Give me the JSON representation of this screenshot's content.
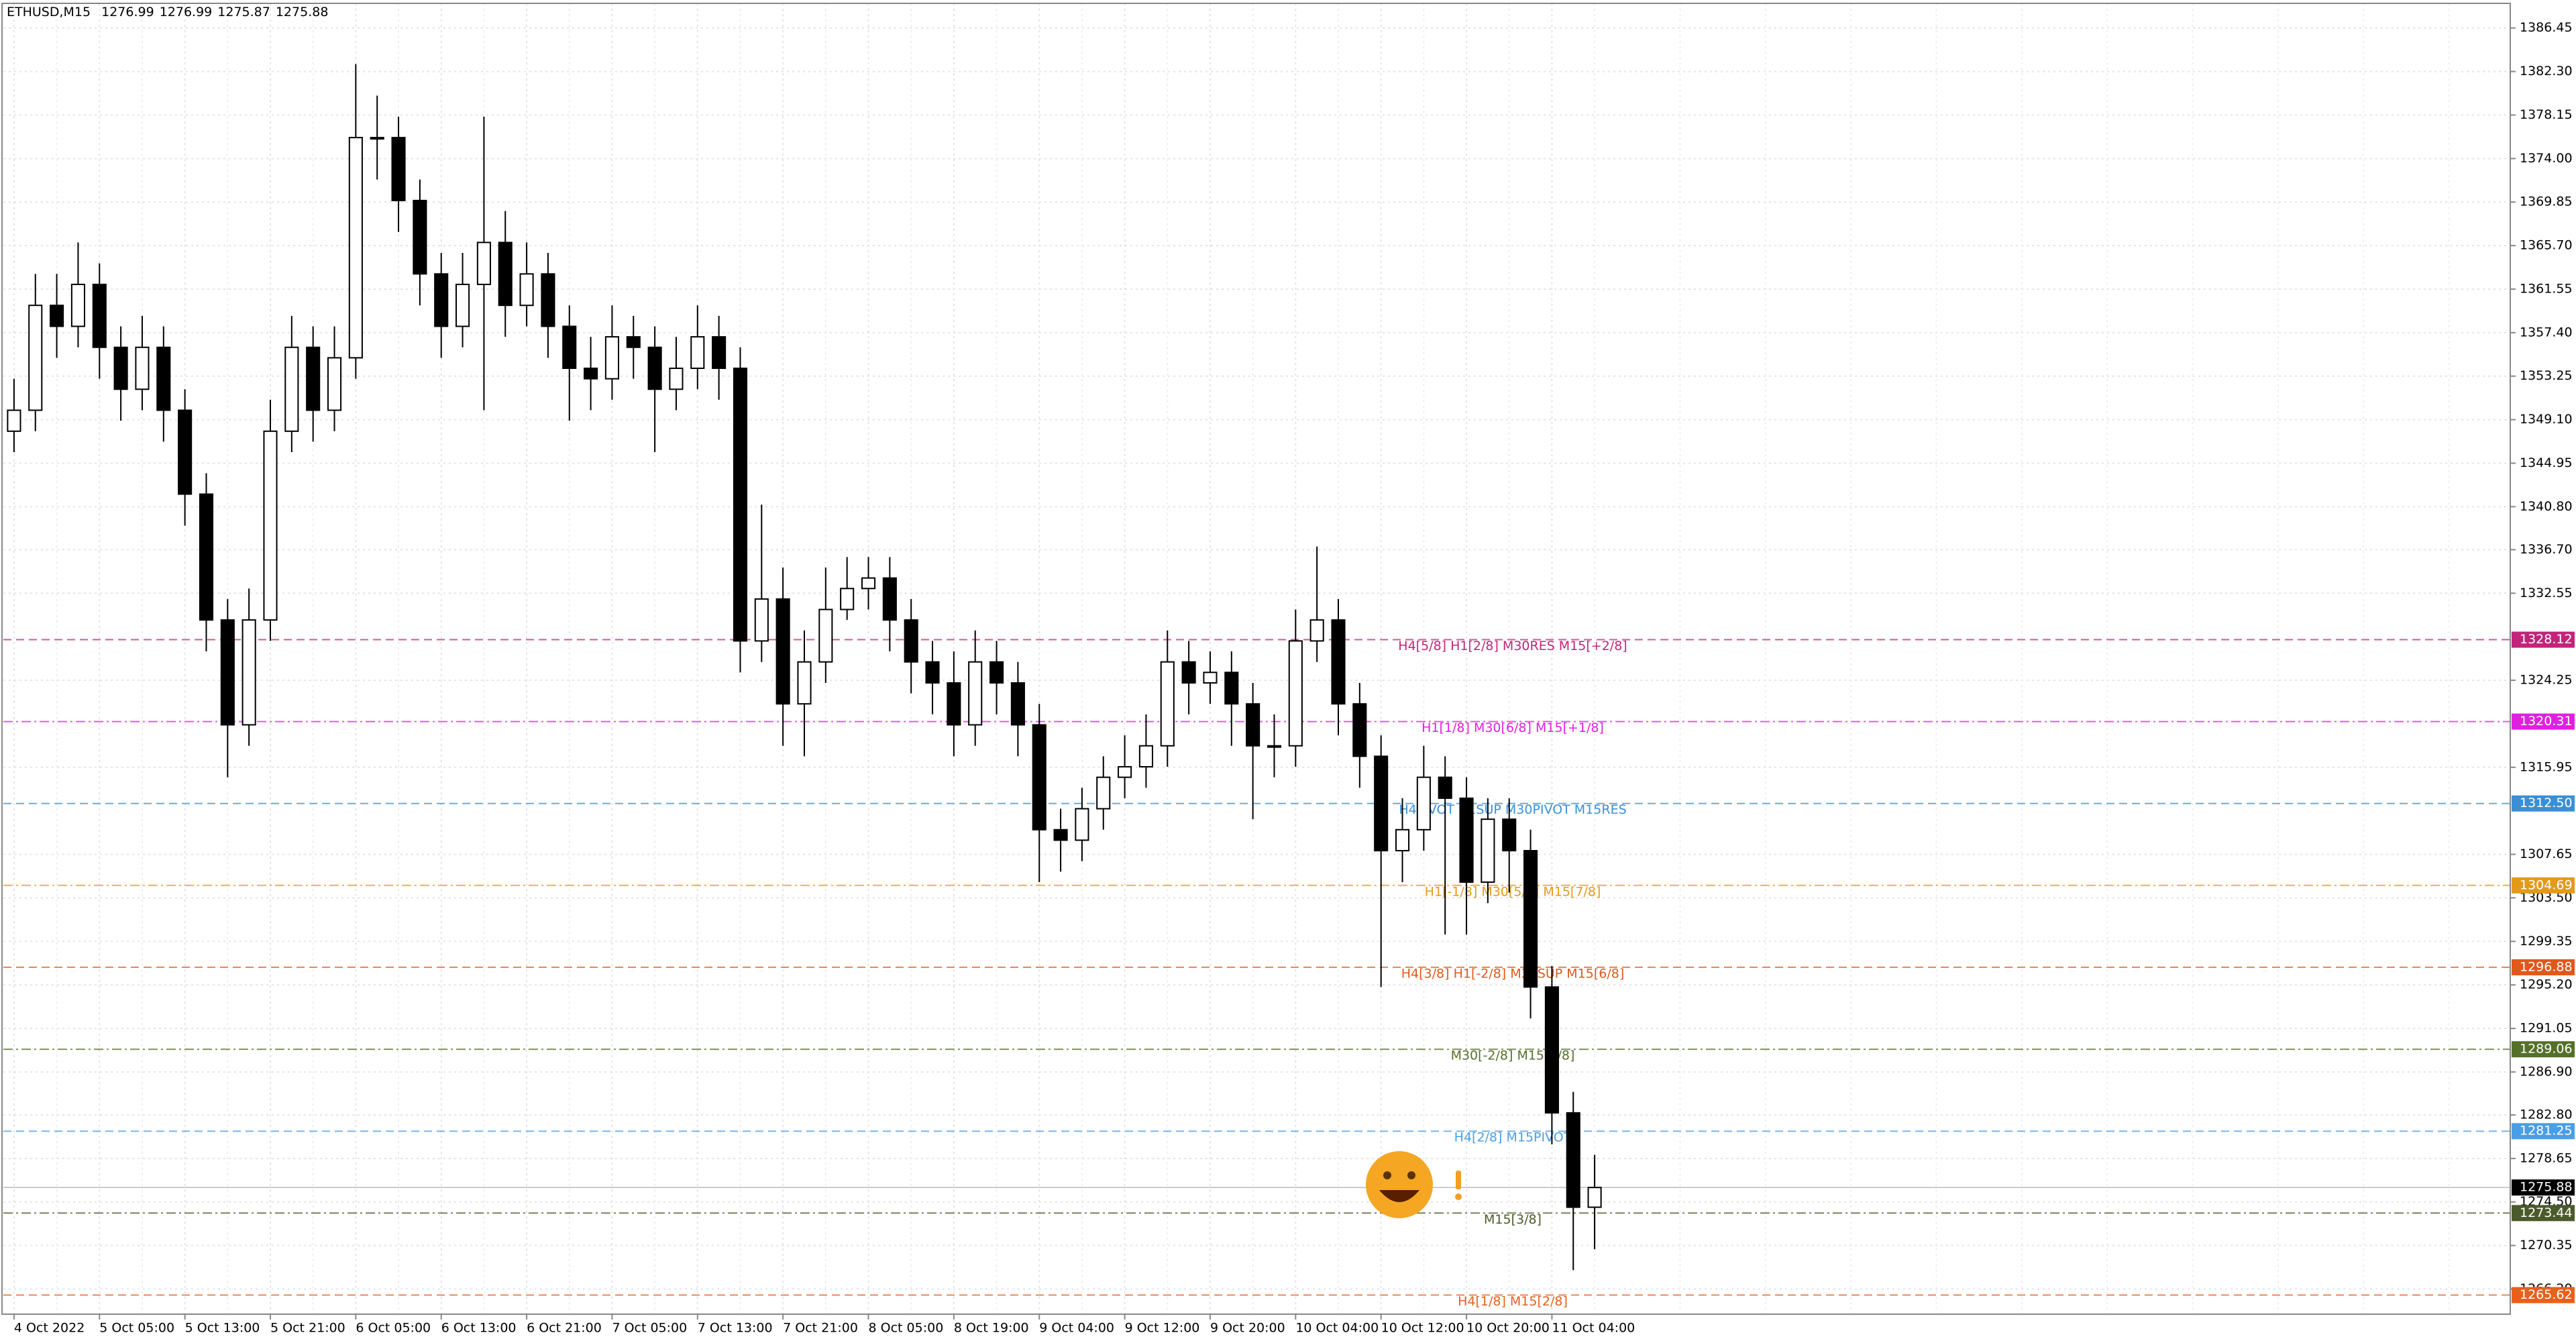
{
  "chart_data": {
    "type": "candlestick",
    "title": "ETHUSD,M15",
    "header_values": [
      1276.99,
      1276.99,
      1275.87,
      1275.88
    ],
    "categories": [
      "4 Oct 2022",
      null,
      null,
      null,
      "5 Oct 05:00",
      null,
      null,
      null,
      "5 Oct 13:00",
      null,
      null,
      null,
      "5 Oct 21:00",
      null,
      null,
      null,
      "6 Oct 05:00",
      null,
      null,
      null,
      "6 Oct 13:00",
      null,
      null,
      null,
      "6 Oct 21:00",
      null,
      null,
      null,
      "7 Oct 05:00",
      null,
      null,
      null,
      "7 Oct 13:00",
      null,
      null,
      null,
      "7 Oct 21:00",
      null,
      null,
      null,
      "8 Oct 05:00",
      null,
      null,
      null,
      "8 Oct 19:00",
      null,
      null,
      null,
      "9 Oct 04:00",
      null,
      null,
      null,
      "9 Oct 12:00",
      null,
      null,
      null,
      "9 Oct 20:00",
      null,
      null,
      null,
      "10 Oct 04:00",
      null,
      null,
      null,
      "10 Oct 12:00",
      null,
      null,
      null,
      "10 Oct 20:00",
      null,
      null,
      null,
      "11 Oct 04:00",
      null,
      null
    ],
    "open": [
      1348,
      1350,
      1360,
      1358,
      1362,
      1356,
      1352,
      1356,
      1350,
      1342,
      1330,
      1320,
      1330,
      1348,
      1356,
      1350,
      1355,
      1376,
      1376,
      1370,
      1363,
      1358,
      1362,
      1366,
      1360,
      1363,
      1358,
      1354,
      1353,
      1357,
      1356,
      1352,
      1354,
      1357,
      1354,
      1328,
      1332,
      1322,
      1326,
      1331,
      1333,
      1334,
      1330,
      1326,
      1324,
      1320,
      1326,
      1324,
      1320,
      1310,
      1309,
      1312,
      1315,
      1316,
      1318,
      1326,
      1324,
      1325,
      1322,
      1318,
      1318,
      1328,
      1330,
      1322,
      1317,
      1308,
      1310,
      1315,
      1313,
      1305,
      1311,
      1308,
      1295,
      1283,
      1274
    ],
    "high": [
      1353,
      1363,
      1363,
      1366,
      1364,
      1358,
      1359,
      1358,
      1352,
      1344,
      1332,
      1333,
      1351,
      1359,
      1358,
      1358,
      1383,
      1380,
      1378,
      1372,
      1365,
      1365,
      1378,
      1369,
      1366,
      1365,
      1360,
      1357,
      1360,
      1359,
      1358,
      1357,
      1360,
      1359,
      1356,
      1341,
      1335,
      1329,
      1335,
      1336,
      1336,
      1336,
      1332,
      1328,
      1327,
      1329,
      1328,
      1326,
      1322,
      1312,
      1314,
      1317,
      1319,
      1321,
      1329,
      1328,
      1327,
      1327,
      1324,
      1321,
      1331,
      1337,
      1332,
      1324,
      1319,
      1313,
      1318,
      1317,
      1315,
      1313,
      1313,
      1310,
      1297,
      1285,
      1279
    ],
    "low": [
      1346,
      1348,
      1355,
      1356,
      1353,
      1349,
      1350,
      1347,
      1339,
      1327,
      1315,
      1318,
      1328,
      1346,
      1347,
      1348,
      1353,
      1372,
      1367,
      1360,
      1355,
      1356,
      1350,
      1357,
      1358,
      1355,
      1349,
      1350,
      1351,
      1353,
      1346,
      1350,
      1352,
      1351,
      1325,
      1326,
      1318,
      1317,
      1324,
      1330,
      1331,
      1327,
      1323,
      1321,
      1317,
      1318,
      1321,
      1317,
      1305,
      1306,
      1307,
      1310,
      1313,
      1314,
      1316,
      1321,
      1322,
      1318,
      1311,
      1315,
      1316,
      1326,
      1319,
      1314,
      1295,
      1305,
      1308,
      1300,
      1300,
      1303,
      1304,
      1292,
      1280,
      1268,
      1270
    ],
    "close": [
      1350,
      1360,
      1358,
      1362,
      1356,
      1352,
      1356,
      1350,
      1342,
      1330,
      1320,
      1330,
      1348,
      1356,
      1350,
      1355,
      1376,
      1376,
      1370,
      1363,
      1358,
      1362,
      1366,
      1360,
      1363,
      1358,
      1354,
      1353,
      1357,
      1356,
      1352,
      1354,
      1357,
      1354,
      1328,
      1332,
      1322,
      1326,
      1331,
      1333,
      1334,
      1330,
      1326,
      1324,
      1320,
      1326,
      1324,
      1320,
      1310,
      1309,
      1312,
      1315,
      1316,
      1318,
      1326,
      1324,
      1325,
      1322,
      1318,
      1318,
      1328,
      1330,
      1322,
      1317,
      1308,
      1310,
      1315,
      1313,
      1305,
      1311,
      1308,
      1295,
      1283,
      1274,
      1275.88
    ],
    "ylim": [
      1263.8,
      1388.8
    ],
    "yticks": [
      {
        "value": 1386.45,
        "label": "1386.45"
      },
      {
        "value": 1382.3,
        "label": "1382.30"
      },
      {
        "value": 1378.15,
        "label": "1378.15"
      },
      {
        "value": 1374,
        "label": "1374.00"
      },
      {
        "value": 1369.85,
        "label": "1369.85"
      },
      {
        "value": 1365.7,
        "label": "1365.70"
      },
      {
        "value": 1361.55,
        "label": "1361.55"
      },
      {
        "value": 1357.4,
        "label": "1357.40"
      },
      {
        "value": 1353.25,
        "label": "1353.25"
      },
      {
        "value": 1349.1,
        "label": "1349.10"
      },
      {
        "value": 1344.95,
        "label": "1344.95"
      },
      {
        "value": 1340.8,
        "label": "1340.80"
      },
      {
        "value": 1336.7,
        "label": "1336.70"
      },
      {
        "value": 1332.55,
        "label": "1332.55"
      },
      {
        "value": 1324.25,
        "label": "1324.25"
      },
      {
        "value": 1315.95,
        "label": "1315.95"
      },
      {
        "value": 1307.65,
        "label": "1307.65"
      },
      {
        "value": 1303.5,
        "label": "1303.50"
      },
      {
        "value": 1299.35,
        "label": "1299.35"
      },
      {
        "value": 1295.2,
        "label": "1295.20"
      },
      {
        "value": 1291.05,
        "label": "1291.05"
      },
      {
        "value": 1286.9,
        "label": "1286.90"
      },
      {
        "value": 1282.8,
        "label": "1282.80"
      },
      {
        "value": 1278.65,
        "label": "1278.65"
      },
      {
        "value": 1274.5,
        "label": "1274.50"
      },
      {
        "value": 1270.35,
        "label": "1270.35"
      },
      {
        "value": 1266.2,
        "label": "1266.20"
      }
    ],
    "grid": true,
    "levels": [
      {
        "label": "H4[5/8] H1[2/8] M30RES M15[+2/8]",
        "value": 1328.12,
        "value_label": "1328.12",
        "color": "#c2247a"
      },
      {
        "label": "H1[1/8] M30[6/8] M15[+1/8]",
        "value": 1320.31,
        "value_label": "1320.31",
        "color": "#e020e0"
      },
      {
        "label": "H4PIVOT H1SUP M30PIVOT M15RES",
        "value": 1312.5,
        "value_label": "1312.50",
        "color": "#3a8fd6"
      },
      {
        "label": "H1[-1/8] M30[5/8] M15[7/8]",
        "value": 1304.69,
        "value_label": "1304.69",
        "color": "#e39a1a"
      },
      {
        "label": "H4[3/8] H1[-2/8] M30SUP M15[6/8]",
        "value": 1296.88,
        "value_label": "1296.88",
        "color": "#e0581c"
      },
      {
        "label": "M30[-2/8] M15[5/8]",
        "value": 1289.06,
        "value_label": "1289.06",
        "color": "#55702a"
      },
      {
        "label": "H4[2/8] M15PIVOT",
        "value": 1281.25,
        "value_label": "1281.25",
        "color": "#4a9ee8"
      },
      {
        "label": "M15[3/8]",
        "value": 1273.44,
        "value_label": "1273.44",
        "color": "#4b5a2a"
      },
      {
        "label": "H4[1/8] M15[2/8]",
        "value": 1265.62,
        "value_label": "1265.62",
        "color": "#e8601c"
      }
    ],
    "current_price": 1275.88
  }
}
